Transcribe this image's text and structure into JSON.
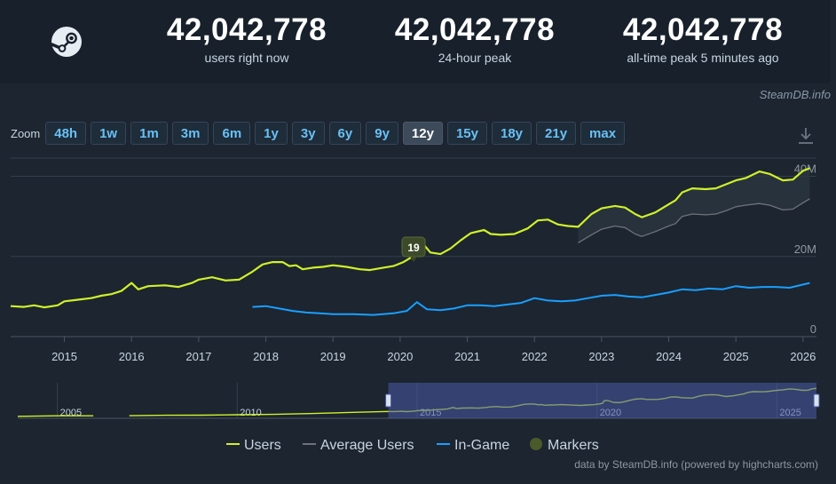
{
  "header": {
    "logo_icon": "steam-logo-icon",
    "stats": [
      {
        "value": "42,042,778",
        "label": "users right now"
      },
      {
        "value": "42,042,778",
        "label": "24-hour peak"
      },
      {
        "value": "42,042,778",
        "label": "all-time peak 5 minutes ago"
      }
    ],
    "brand": "SteamDB.info"
  },
  "zoom": {
    "label": "Zoom",
    "options": [
      "48h",
      "1w",
      "1m",
      "3m",
      "6m",
      "1y",
      "3y",
      "6y",
      "9y",
      "12y",
      "15y",
      "18y",
      "21y",
      "max"
    ],
    "selected": "12y",
    "download_icon": "download-icon"
  },
  "credit": "data by SteamDB.info (powered by highcharts.com)",
  "colors": {
    "users": "#d0f02a",
    "average": "#6e7378",
    "ingame": "#1a9fff",
    "markers": "#4a5a2a",
    "navigator_mask": "#4a5aa8"
  },
  "chart_data": {
    "type": "line",
    "x_axis": {
      "type": "time",
      "range": [
        2014.2,
        2026.2
      ],
      "ticks": [
        "2015",
        "2016",
        "2017",
        "2018",
        "2019",
        "2020",
        "2021",
        "2022",
        "2023",
        "2024",
        "2025",
        "2026"
      ]
    },
    "y_axis": {
      "range": [
        0,
        45000000
      ],
      "ticks": [
        "0",
        "20M",
        "40M"
      ],
      "grid": true
    },
    "legend": {
      "placement": "bottom",
      "items": [
        "Users",
        "Average Users",
        "In-Game",
        "Markers"
      ]
    },
    "series": [
      {
        "name": "Users",
        "points": [
          [
            2014.2,
            7.6
          ],
          [
            2014.4,
            7.4
          ],
          [
            2014.55,
            7.8
          ],
          [
            2014.7,
            7.3
          ],
          [
            2014.9,
            7.8
          ],
          [
            2015.0,
            8.8
          ],
          [
            2015.2,
            9.2
          ],
          [
            2015.4,
            9.6
          ],
          [
            2015.55,
            10.2
          ],
          [
            2015.7,
            10.6
          ],
          [
            2015.85,
            11.4
          ],
          [
            2016.0,
            13.4
          ],
          [
            2016.1,
            11.8
          ],
          [
            2016.25,
            12.6
          ],
          [
            2016.5,
            12.8
          ],
          [
            2016.7,
            12.4
          ],
          [
            2016.9,
            13.4
          ],
          [
            2017.0,
            14.2
          ],
          [
            2017.2,
            14.8
          ],
          [
            2017.4,
            14.0
          ],
          [
            2017.6,
            14.2
          ],
          [
            2017.8,
            16.2
          ],
          [
            2017.95,
            18.0
          ],
          [
            2018.1,
            18.6
          ],
          [
            2018.25,
            18.6
          ],
          [
            2018.35,
            17.6
          ],
          [
            2018.45,
            17.8
          ],
          [
            2018.55,
            16.8
          ],
          [
            2018.7,
            17.2
          ],
          [
            2018.85,
            17.4
          ],
          [
            2019.0,
            17.8
          ],
          [
            2019.2,
            17.4
          ],
          [
            2019.4,
            16.8
          ],
          [
            2019.55,
            16.6
          ],
          [
            2019.75,
            17.2
          ],
          [
            2019.9,
            17.6
          ],
          [
            2020.05,
            18.6
          ],
          [
            2020.15,
            19.6
          ],
          [
            2020.2,
            23.4
          ],
          [
            2020.3,
            24.0
          ],
          [
            2020.45,
            21.0
          ],
          [
            2020.6,
            20.6
          ],
          [
            2020.75,
            22.0
          ],
          [
            2020.9,
            24.0
          ],
          [
            2021.05,
            25.8
          ],
          [
            2021.25,
            26.6
          ],
          [
            2021.35,
            25.6
          ],
          [
            2021.5,
            25.4
          ],
          [
            2021.7,
            25.6
          ],
          [
            2021.9,
            27.0
          ],
          [
            2022.05,
            29.0
          ],
          [
            2022.2,
            29.2
          ],
          [
            2022.35,
            28.0
          ],
          [
            2022.5,
            27.6
          ],
          [
            2022.65,
            27.4
          ],
          [
            2022.85,
            30.6
          ],
          [
            2023.0,
            32.0
          ],
          [
            2023.2,
            32.6
          ],
          [
            2023.35,
            32.2
          ],
          [
            2023.5,
            30.6
          ],
          [
            2023.6,
            29.8
          ],
          [
            2023.8,
            31.0
          ],
          [
            2024.0,
            33.0
          ],
          [
            2024.1,
            34.0
          ],
          [
            2024.2,
            36.0
          ],
          [
            2024.35,
            37.0
          ],
          [
            2024.55,
            36.8
          ],
          [
            2024.7,
            37.0
          ],
          [
            2024.85,
            38.0
          ],
          [
            2025.0,
            39.0
          ],
          [
            2025.15,
            39.6
          ],
          [
            2025.35,
            41.2
          ],
          [
            2025.5,
            40.6
          ],
          [
            2025.7,
            39.0
          ],
          [
            2025.85,
            39.2
          ],
          [
            2026.0,
            41.4
          ],
          [
            2026.1,
            42.0
          ]
        ]
      },
      {
        "name": "Average Users",
        "points": [
          [
            2022.65,
            23.4
          ],
          [
            2022.85,
            25.4
          ],
          [
            2023.0,
            26.8
          ],
          [
            2023.2,
            27.6
          ],
          [
            2023.35,
            27.2
          ],
          [
            2023.5,
            25.6
          ],
          [
            2023.6,
            25.0
          ],
          [
            2023.8,
            26.2
          ],
          [
            2024.0,
            27.6
          ],
          [
            2024.1,
            28.2
          ],
          [
            2024.2,
            30.0
          ],
          [
            2024.35,
            30.6
          ],
          [
            2024.55,
            30.4
          ],
          [
            2024.7,
            30.6
          ],
          [
            2024.85,
            31.4
          ],
          [
            2025.0,
            32.4
          ],
          [
            2025.15,
            32.8
          ],
          [
            2025.35,
            33.2
          ],
          [
            2025.5,
            32.8
          ],
          [
            2025.7,
            31.6
          ],
          [
            2025.85,
            31.8
          ],
          [
            2026.0,
            33.4
          ],
          [
            2026.1,
            34.4
          ]
        ]
      },
      {
        "name": "In-Game",
        "points": [
          [
            2017.8,
            7.4
          ],
          [
            2018.0,
            7.6
          ],
          [
            2018.2,
            7.0
          ],
          [
            2018.4,
            6.4
          ],
          [
            2018.6,
            6.0
          ],
          [
            2018.8,
            5.8
          ],
          [
            2019.0,
            5.6
          ],
          [
            2019.3,
            5.6
          ],
          [
            2019.6,
            5.4
          ],
          [
            2019.9,
            5.8
          ],
          [
            2020.1,
            6.4
          ],
          [
            2020.25,
            8.6
          ],
          [
            2020.4,
            6.8
          ],
          [
            2020.6,
            6.6
          ],
          [
            2020.8,
            7.0
          ],
          [
            2021.0,
            7.8
          ],
          [
            2021.2,
            7.8
          ],
          [
            2021.4,
            7.6
          ],
          [
            2021.6,
            8.0
          ],
          [
            2021.8,
            8.4
          ],
          [
            2022.0,
            9.6
          ],
          [
            2022.2,
            9.0
          ],
          [
            2022.4,
            8.8
          ],
          [
            2022.6,
            9.0
          ],
          [
            2022.8,
            9.6
          ],
          [
            2023.0,
            10.2
          ],
          [
            2023.2,
            10.4
          ],
          [
            2023.4,
            10.0
          ],
          [
            2023.6,
            9.8
          ],
          [
            2023.8,
            10.4
          ],
          [
            2024.0,
            11.0
          ],
          [
            2024.2,
            11.8
          ],
          [
            2024.4,
            11.6
          ],
          [
            2024.6,
            12.0
          ],
          [
            2024.8,
            11.8
          ],
          [
            2025.0,
            12.6
          ],
          [
            2025.2,
            12.2
          ],
          [
            2025.4,
            12.4
          ],
          [
            2025.6,
            12.4
          ],
          [
            2025.8,
            12.2
          ],
          [
            2026.0,
            13.0
          ],
          [
            2026.1,
            13.4
          ]
        ]
      }
    ],
    "markers": [
      {
        "x": 2020.2,
        "label": "19"
      }
    ],
    "navigator": {
      "range": [
        2003.9,
        2026.1
      ],
      "ticks": [
        "2005",
        "2010",
        "2015",
        "2020",
        "2025"
      ],
      "selected": [
        2014.2,
        2026.1
      ]
    }
  }
}
